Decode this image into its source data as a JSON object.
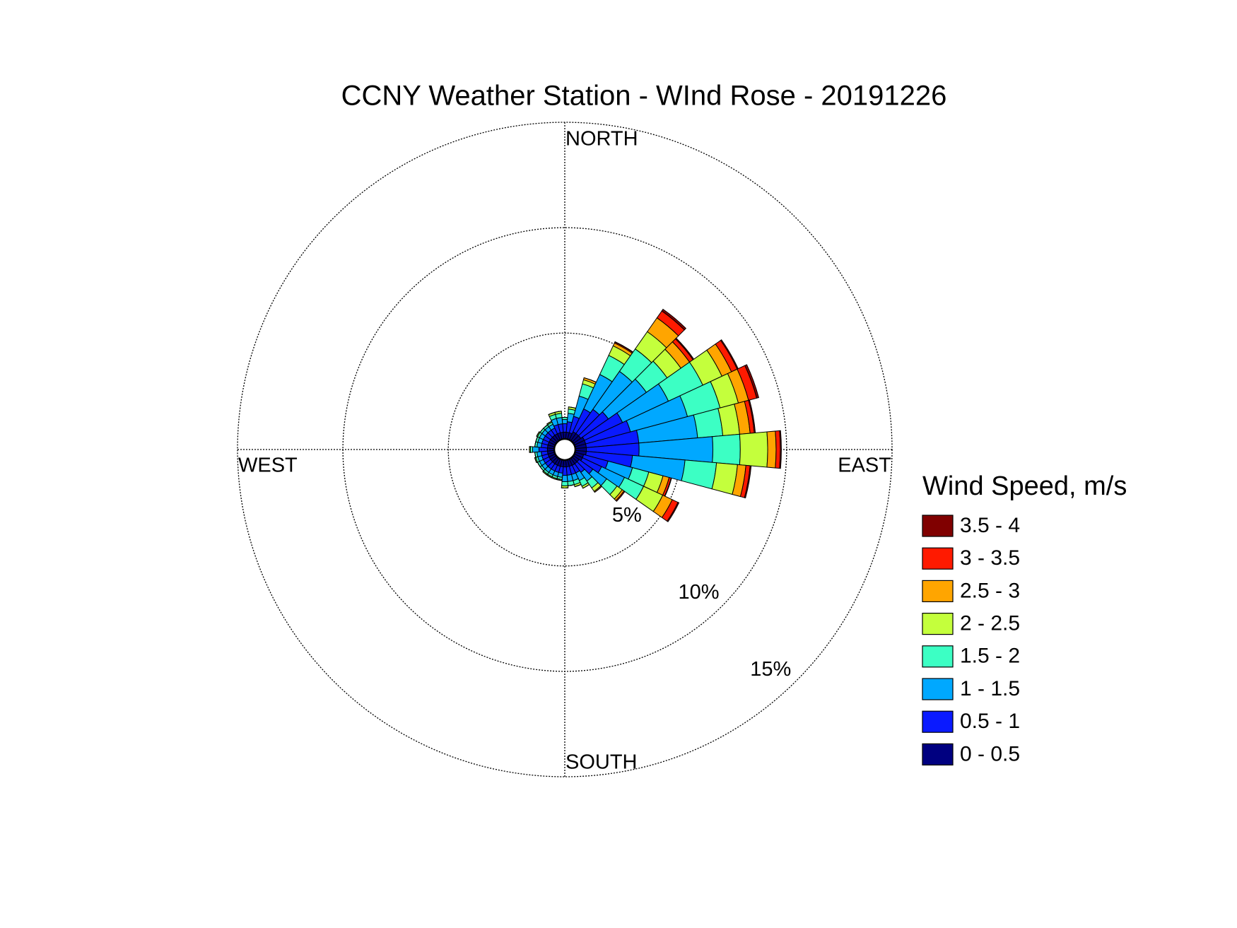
{
  "chart_data": {
    "type": "windrose",
    "title": "CCNY Weather Station - WInd Rose - 20191226",
    "direction_labels": [
      "NORTH",
      "EAST",
      "SOUTH",
      "WEST"
    ],
    "legend_title": "Wind Speed, m/s",
    "x": [
      0,
      10,
      20,
      30,
      40,
      50,
      60,
      70,
      80,
      90,
      100,
      110,
      120,
      130,
      140,
      150,
      160,
      170,
      180,
      190,
      200,
      210,
      220,
      230,
      240,
      250,
      260,
      270,
      280,
      290,
      300,
      310,
      320,
      330,
      340,
      350
    ],
    "rlim": [
      0,
      15
    ],
    "rticks": [
      {
        "value": 5,
        "label": "5%"
      },
      {
        "value": 10,
        "label": "10%"
      },
      {
        "value": 15,
        "label": "15%"
      }
    ],
    "grid": true,
    "legend_position": "right",
    "series": [
      {
        "name": "0 - 0.5",
        "color": "#000080",
        "values": [
          0.3,
          0.3,
          0.3,
          0.4,
          0.4,
          0.4,
          0.5,
          0.5,
          0.5,
          0.5,
          0.5,
          0.4,
          0.4,
          0.3,
          0.3,
          0.3,
          0.3,
          0.3,
          0.3,
          0.3,
          0.3,
          0.3,
          0.3,
          0.3,
          0.3,
          0.3,
          0.3,
          0.3,
          0.3,
          0.3,
          0.3,
          0.3,
          0.3,
          0.3,
          0.3,
          0.3
        ]
      },
      {
        "name": "0.5 - 1",
        "color": "#0a1aff",
        "values": [
          0.4,
          0.5,
          0.8,
          1.2,
          1.4,
          1.6,
          2.0,
          2.2,
          2.5,
          2.5,
          2.2,
          1.2,
          1.0,
          0.8,
          0.5,
          0.4,
          0.4,
          0.4,
          0.4,
          0.3,
          0.3,
          0.3,
          0.3,
          0.3,
          0.3,
          0.3,
          0.3,
          0.4,
          0.3,
          0.3,
          0.3,
          0.3,
          0.3,
          0.3,
          0.4,
          0.4
        ]
      },
      {
        "name": "1 - 1.5",
        "color": "#00a8ff",
        "values": [
          0.2,
          0.4,
          1.0,
          1.8,
          2.2,
          2.2,
          2.4,
          2.8,
          2.8,
          3.5,
          2.5,
          1.2,
          1.2,
          0.8,
          0.5,
          0.4,
          0.3,
          0.3,
          0.3,
          0.2,
          0.2,
          0.2,
          0.2,
          0.2,
          0.2,
          0.2,
          0.2,
          0.3,
          0.2,
          0.2,
          0.2,
          0.2,
          0.2,
          0.2,
          0.3,
          0.3
        ]
      },
      {
        "name": "1.5 - 2",
        "color": "#3cffc4",
        "values": [
          0.1,
          0.2,
          0.6,
          1.0,
          1.3,
          1.2,
          1.8,
          1.6,
          1.2,
          1.3,
          1.5,
          0.8,
          1.0,
          0.6,
          0.4,
          0.3,
          0.2,
          0.2,
          0.2,
          0.1,
          0.1,
          0.1,
          0.1,
          0.1,
          0.1,
          0.1,
          0.1,
          0.1,
          0.1,
          0.1,
          0.1,
          0.1,
          0.1,
          0.1,
          0.2,
          0.2
        ]
      },
      {
        "name": "2 - 2.5",
        "color": "#c4ff3c",
        "values": [
          0,
          0.1,
          0.2,
          0.5,
          1.0,
          0.8,
          1.0,
          0.9,
          0.8,
          1.3,
          1.0,
          0.7,
          1.0,
          0.3,
          0.2,
          0.1,
          0.1,
          0,
          0.1,
          0.05,
          0.05,
          0.05,
          0.05,
          0,
          0,
          0.05,
          0,
          0.05,
          0,
          0,
          0.05,
          0,
          0,
          0.05,
          0.1,
          0.1
        ]
      },
      {
        "name": "2.5 - 3",
        "color": "#ffa500",
        "values": [
          0,
          0,
          0.1,
          0.15,
          0.8,
          0.5,
          0.5,
          0.5,
          0.5,
          0.4,
          0.4,
          0.3,
          0.5,
          0.1,
          0.05,
          0,
          0,
          0,
          0,
          0,
          0,
          0,
          0,
          0,
          0,
          0,
          0,
          0,
          0,
          0,
          0,
          0,
          0,
          0,
          0,
          0
        ]
      },
      {
        "name": "3 - 3.5",
        "color": "#ff1a00",
        "values": [
          0,
          0,
          0,
          0.05,
          0.4,
          0.2,
          0.3,
          0.4,
          0.2,
          0.2,
          0.2,
          0.1,
          0.3,
          0.05,
          0,
          0,
          0,
          0,
          0,
          0,
          0,
          0,
          0,
          0,
          0,
          0,
          0,
          0,
          0,
          0,
          0,
          0,
          0,
          0,
          0,
          0
        ]
      },
      {
        "name": "3.5 - 4",
        "color": "#800000",
        "values": [
          0,
          0,
          0,
          0.02,
          0.1,
          0.05,
          0.05,
          0.1,
          0.05,
          0.05,
          0.05,
          0.02,
          0.05,
          0,
          0,
          0,
          0,
          0,
          0,
          0,
          0,
          0,
          0,
          0,
          0,
          0,
          0,
          0,
          0,
          0,
          0,
          0,
          0,
          0,
          0,
          0
        ]
      }
    ]
  }
}
